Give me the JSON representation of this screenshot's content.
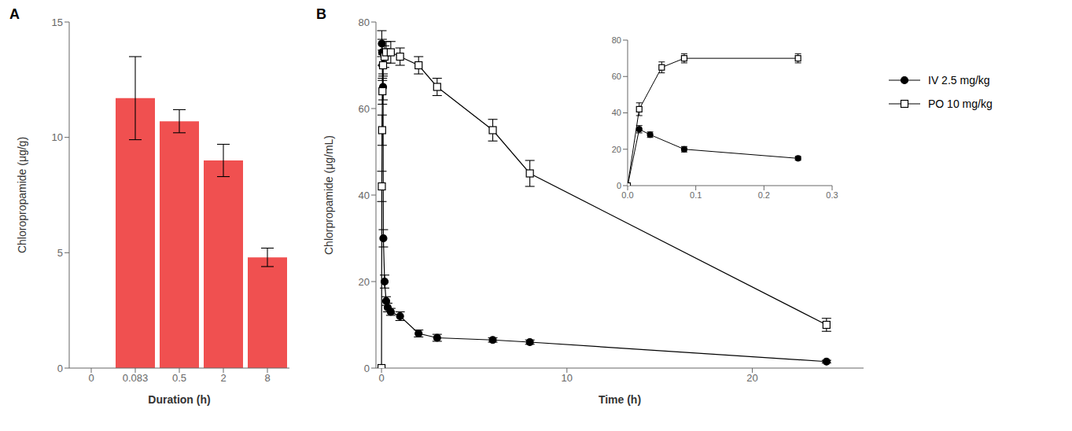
{
  "chart_data": [
    {
      "type": "bar",
      "annotation": "A",
      "categories": [
        "0",
        "0.083",
        "0.5",
        "2",
        "8"
      ],
      "values": [
        0,
        11.7,
        10.7,
        9.0,
        4.8
      ],
      "errors": [
        0,
        1.8,
        0.5,
        0.7,
        0.4
      ],
      "color": "#F05050",
      "xlabel": "Duration (h)",
      "ylabel": "Chloropropamide (μg/g)",
      "ylim": [
        0,
        15
      ],
      "yticks": [
        0,
        5,
        10,
        15
      ]
    },
    {
      "type": "line",
      "annotation": "B",
      "xlabel": "Time (h)",
      "ylabel": "Chlorpropamide (μg/mL)",
      "xlim": [
        -0.3,
        26
      ],
      "xticks": [
        0,
        10,
        20
      ],
      "ylim": [
        0,
        80
      ],
      "yticks": [
        0,
        20,
        40,
        60,
        80
      ],
      "legend": "right",
      "series": [
        {
          "name": "IV 2.5 mg/kg",
          "color": "#000000",
          "marker": "circle",
          "x": [
            0.017,
            0.033,
            0.05,
            0.083,
            0.1,
            0.167,
            0.25,
            0.333,
            0.5,
            1.0,
            2.0,
            3.0,
            6.0,
            8.0,
            24.0
          ],
          "values": [
            75.0,
            73.0,
            70.0,
            65.0,
            30.0,
            20.0,
            15.5,
            14.0,
            13.0,
            12.0,
            8.0,
            7.0,
            6.5,
            6.0,
            1.5
          ],
          "errors": [
            3.0,
            3.0,
            3.5,
            3.0,
            2.0,
            1.5,
            1.0,
            1.0,
            0.8,
            1.0,
            0.8,
            0.8,
            0.5,
            0.5,
            0.3
          ]
        },
        {
          "name": "PO 10 mg/kg",
          "color": "#000000",
          "marker": "open_square",
          "x": [
            0.0,
            0.017,
            0.033,
            0.05,
            0.083,
            0.167,
            0.25,
            0.5,
            1.0,
            2.0,
            3.0,
            6.0,
            8.0,
            24.0
          ],
          "values": [
            0.0,
            42.0,
            55.0,
            64.0,
            70.0,
            72.0,
            73.0,
            73.0,
            72.0,
            70.0,
            65.0,
            55.0,
            45.0,
            10.0
          ],
          "errors": [
            0.0,
            3.5,
            3.5,
            3.0,
            2.5,
            2.5,
            2.5,
            2.5,
            2.0,
            2.0,
            2.0,
            2.5,
            3.0,
            1.5
          ]
        }
      ]
    },
    {
      "type": "line",
      "xlim": [
        0.0,
        0.3
      ],
      "xticks": [
        {
          "value": 0.0,
          "label": "0.0"
        },
        0.1,
        0.2,
        0.3
      ],
      "ylim": [
        0,
        80
      ],
      "yticks": [
        0,
        20,
        40,
        60,
        80
      ],
      "series": [
        {
          "color": "#000000",
          "marker": "circle",
          "x": [
            0.0,
            0.017,
            0.033,
            0.083,
            0.25
          ],
          "values": [
            0.0,
            31.0,
            28.0,
            20.0,
            15.0
          ],
          "errors": [
            0.0,
            2.0,
            1.5,
            1.5,
            1.0
          ]
        },
        {
          "color": "#000000",
          "marker": "open_square",
          "x": [
            0.0,
            0.017,
            0.05,
            0.083,
            0.25
          ],
          "values": [
            0.0,
            42.0,
            65.0,
            70.0,
            70.0
          ],
          "errors": [
            0.0,
            3.5,
            3.0,
            2.5,
            2.5
          ]
        }
      ]
    }
  ]
}
